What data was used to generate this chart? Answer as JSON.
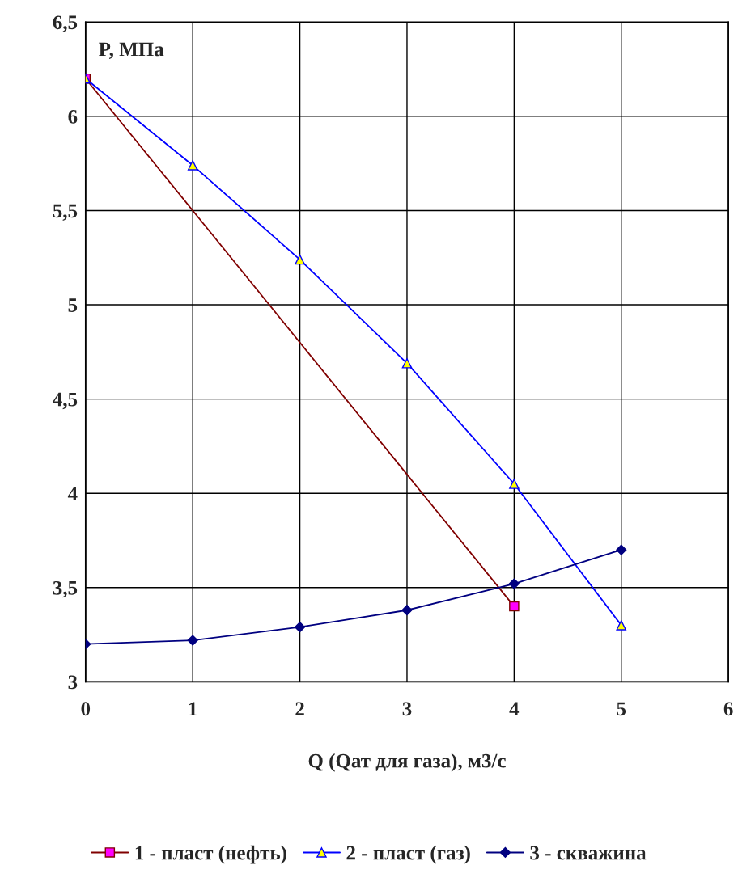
{
  "chart_data": {
    "type": "line",
    "xlabel": "Q (Qат для газа), м3/с",
    "ylabel": "P, МПа",
    "xlim": [
      0,
      6
    ],
    "xticks": [
      0,
      1,
      2,
      3,
      4,
      5,
      6
    ],
    "ylim": [
      3,
      6.5
    ],
    "yticks": [
      3,
      {
        "value": 3.5,
        "label": "3,5"
      },
      4,
      {
        "value": 4.5,
        "label": "4,5"
      },
      5,
      {
        "value": 5.5,
        "label": "5,5"
      },
      6,
      {
        "value": 6.5,
        "label": "6,5"
      }
    ],
    "grid": true,
    "legend": "bottom",
    "series": [
      {
        "name": "1 - пласт (нефть)",
        "color": "#800000",
        "marker": "square",
        "colors": [
          "#ff00ff",
          "#ff00ff"
        ],
        "x": [
          0,
          4
        ],
        "values": [
          6.2,
          3.4
        ]
      },
      {
        "name": "2 - пласт (газ)",
        "color": "#0000ff",
        "marker": "triangle",
        "colors": [
          "#ffff00",
          "#ffff00",
          "#ffff00",
          "#ffff00",
          "#ffff00",
          "#ffff00"
        ],
        "x": [
          0,
          1,
          2,
          3,
          4,
          5
        ],
        "values": [
          6.2,
          5.74,
          5.24,
          4.69,
          4.05,
          3.3
        ]
      },
      {
        "name": "3 - скважина",
        "color": "#000080",
        "marker": "diamond",
        "colors": [
          "#000080",
          "#000080",
          "#000080",
          "#000080",
          "#000080",
          "#000080"
        ],
        "x": [
          0,
          1,
          2,
          3,
          4,
          5
        ],
        "values": [
          3.2,
          3.22,
          3.29,
          3.38,
          3.52,
          3.7
        ]
      }
    ]
  }
}
